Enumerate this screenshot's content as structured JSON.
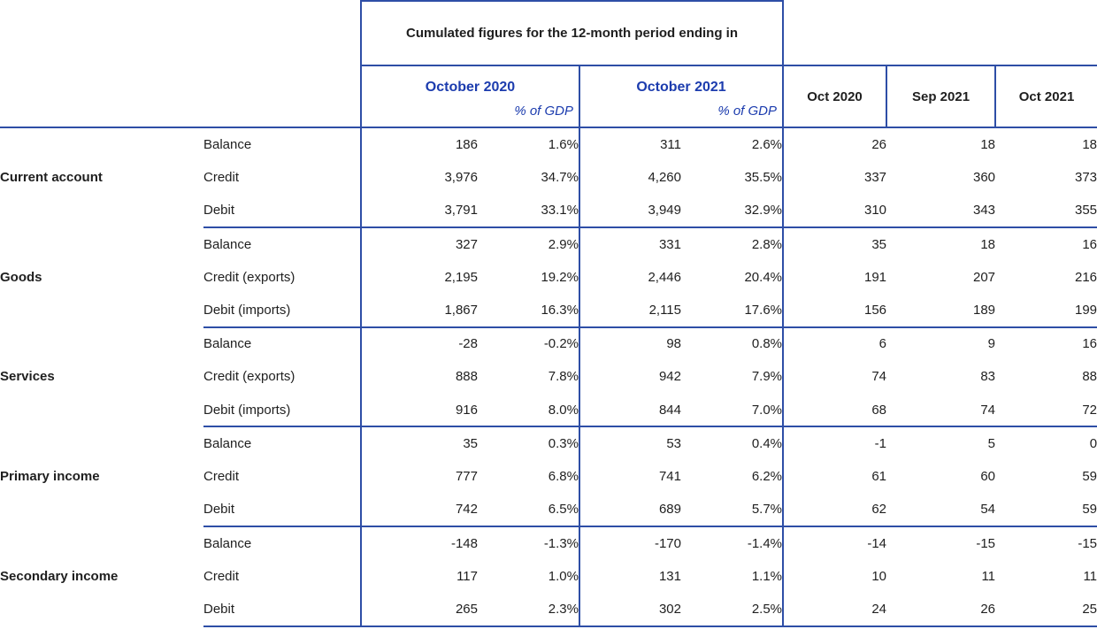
{
  "colors": {
    "border": "#2e4ea6",
    "label_text": "#1c3cae",
    "value_text": "#1f1f1f"
  },
  "table": {
    "header": {
      "cumulated_title": "Cumulated figures for the 12-month period ending in",
      "period_columns": [
        {
          "label": "October 2020",
          "sub": "% of GDP"
        },
        {
          "label": "October 2021",
          "sub": "% of GDP"
        }
      ],
      "month_columns": [
        "Oct 2020",
        "Sep 2021",
        "Oct 2021"
      ]
    },
    "groups": [
      {
        "name": "Current account",
        "rows": [
          {
            "label": "Balance",
            "values": [
              "186",
              "1.6%",
              "311",
              "2.6%",
              "26",
              "18",
              "18"
            ]
          },
          {
            "label": "Credit",
            "values": [
              "3,976",
              "34.7%",
              "4,260",
              "35.5%",
              "337",
              "360",
              "373"
            ]
          },
          {
            "label": "Debit",
            "values": [
              "3,791",
              "33.1%",
              "3,949",
              "32.9%",
              "310",
              "343",
              "355"
            ]
          }
        ]
      },
      {
        "name": "Goods",
        "rows": [
          {
            "label": "Balance",
            "values": [
              "327",
              "2.9%",
              "331",
              "2.8%",
              "35",
              "18",
              "16"
            ]
          },
          {
            "label": "Credit (exports)",
            "values": [
              "2,195",
              "19.2%",
              "2,446",
              "20.4%",
              "191",
              "207",
              "216"
            ]
          },
          {
            "label": "Debit (imports)",
            "values": [
              "1,867",
              "16.3%",
              "2,115",
              "17.6%",
              "156",
              "189",
              "199"
            ]
          }
        ]
      },
      {
        "name": "Services",
        "rows": [
          {
            "label": "Balance",
            "values": [
              "-28",
              "-0.2%",
              "98",
              "0.8%",
              "6",
              "9",
              "16"
            ]
          },
          {
            "label": "Credit (exports)",
            "values": [
              "888",
              "7.8%",
              "942",
              "7.9%",
              "74",
              "83",
              "88"
            ]
          },
          {
            "label": "Debit (imports)",
            "values": [
              "916",
              "8.0%",
              "844",
              "7.0%",
              "68",
              "74",
              "72"
            ]
          }
        ]
      },
      {
        "name": "Primary income",
        "rows": [
          {
            "label": "Balance",
            "values": [
              "35",
              "0.3%",
              "53",
              "0.4%",
              "-1",
              "5",
              "0"
            ]
          },
          {
            "label": "Credit",
            "values": [
              "777",
              "6.8%",
              "741",
              "6.2%",
              "61",
              "60",
              "59"
            ]
          },
          {
            "label": "Debit",
            "values": [
              "742",
              "6.5%",
              "689",
              "5.7%",
              "62",
              "54",
              "59"
            ]
          }
        ]
      },
      {
        "name": "Secondary income",
        "rows": [
          {
            "label": "Balance",
            "values": [
              "-148",
              "-1.3%",
              "-170",
              "-1.4%",
              "-14",
              "-15",
              "-15"
            ]
          },
          {
            "label": "Credit",
            "values": [
              "117",
              "1.0%",
              "131",
              "1.1%",
              "10",
              "11",
              "11"
            ]
          },
          {
            "label": "Debit",
            "values": [
              "265",
              "2.3%",
              "302",
              "2.5%",
              "24",
              "26",
              "25"
            ]
          }
        ]
      }
    ]
  }
}
